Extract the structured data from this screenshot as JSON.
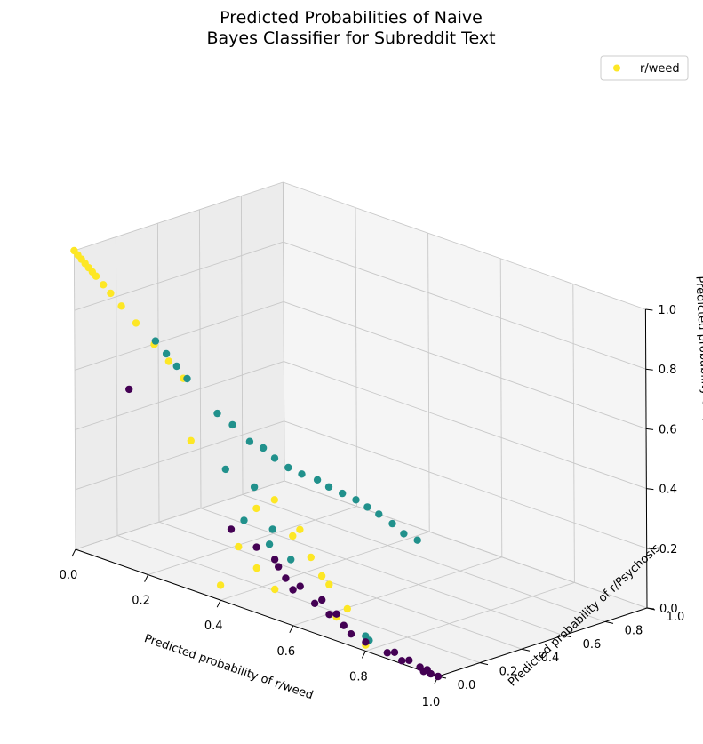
{
  "chart_data": {
    "type": "scatter",
    "projection": "3d",
    "title_lines": [
      "Predicted Probabilities of Naive",
      "Bayes Classifier for Subreddit Text"
    ],
    "xlabel": "Predicted probability of r/weed",
    "ylabel": "Predicted probability of r/Psychosis",
    "zlabel": "Predicted probability of r/schizophrenia",
    "xlim": [
      0,
      1
    ],
    "ylim": [
      0,
      1
    ],
    "zlim": [
      0,
      1
    ],
    "x_ticks": [
      "0.0",
      "0.2",
      "0.4",
      "0.6",
      "0.8",
      "1.0"
    ],
    "y_ticks": [
      "0.0",
      "0.2",
      "0.4",
      "0.6",
      "0.8",
      "1.0"
    ],
    "z_ticks": [
      "0.0",
      "0.2",
      "0.4",
      "0.6",
      "0.8",
      "1.0"
    ],
    "grid": true,
    "legend": {
      "position": "top-right",
      "entries": [
        {
          "label": "r/weed",
          "color": "#fde725"
        }
      ]
    },
    "colors": {
      "weed": "#fde725",
      "psychosis": "#21918c",
      "schizophrenia": "#440154"
    },
    "series": [
      {
        "color_key": "weed",
        "points": [
          [
            0.0,
            0.0,
            1.0
          ],
          [
            0.01,
            0.0,
            0.99
          ],
          [
            0.02,
            0.0,
            0.98
          ],
          [
            0.03,
            0.0,
            0.97
          ],
          [
            0.04,
            0.0,
            0.96
          ],
          [
            0.05,
            0.0,
            0.95
          ],
          [
            0.06,
            0.0,
            0.94
          ],
          [
            0.08,
            0.0,
            0.92
          ],
          [
            0.1,
            0.0,
            0.9
          ],
          [
            0.13,
            0.0,
            0.87
          ],
          [
            0.17,
            0.0,
            0.83
          ],
          [
            0.22,
            0.0,
            0.78
          ],
          [
            0.26,
            0.0,
            0.74
          ],
          [
            0.3,
            0.0,
            0.7
          ],
          [
            0.32,
            0.0,
            0.5
          ],
          [
            0.5,
            0.0,
            0.35
          ],
          [
            0.55,
            0.0,
            0.4
          ],
          [
            0.6,
            0.0,
            0.3
          ],
          [
            0.62,
            0.0,
            0.33
          ],
          [
            0.65,
            0.0,
            0.25
          ],
          [
            0.68,
            0.0,
            0.2
          ],
          [
            0.7,
            0.0,
            0.18
          ],
          [
            0.75,
            0.0,
            0.12
          ],
          [
            0.5,
            0.0,
            0.15
          ],
          [
            0.55,
            0.0,
            0.1
          ],
          [
            0.72,
            0.0,
            0.08
          ],
          [
            0.8,
            0.0,
            0.02
          ],
          [
            0.45,
            0.0,
            0.2
          ],
          [
            0.4,
            0.0,
            0.05
          ]
        ]
      },
      {
        "color_key": "psychosis",
        "points": [
          [
            0.05,
            0.3,
            0.65
          ],
          [
            0.08,
            0.3,
            0.62
          ],
          [
            0.12,
            0.28,
            0.6
          ],
          [
            0.16,
            0.26,
            0.58
          ],
          [
            0.22,
            0.3,
            0.48
          ],
          [
            0.25,
            0.32,
            0.45
          ],
          [
            0.28,
            0.35,
            0.4
          ],
          [
            0.3,
            0.38,
            0.38
          ],
          [
            0.32,
            0.4,
            0.35
          ],
          [
            0.34,
            0.43,
            0.32
          ],
          [
            0.36,
            0.46,
            0.3
          ],
          [
            0.38,
            0.5,
            0.28
          ],
          [
            0.4,
            0.52,
            0.26
          ],
          [
            0.42,
            0.55,
            0.24
          ],
          [
            0.44,
            0.58,
            0.22
          ],
          [
            0.46,
            0.6,
            0.2
          ],
          [
            0.48,
            0.62,
            0.18
          ],
          [
            0.5,
            0.65,
            0.15
          ],
          [
            0.52,
            0.67,
            0.12
          ],
          [
            0.54,
            0.7,
            0.1
          ],
          [
            0.3,
            0.2,
            0.35
          ],
          [
            0.35,
            0.25,
            0.3
          ],
          [
            0.35,
            0.2,
            0.2
          ],
          [
            0.4,
            0.25,
            0.18
          ],
          [
            0.42,
            0.2,
            0.15
          ],
          [
            0.45,
            0.25,
            0.1
          ],
          [
            0.8,
            0.0,
            0.05
          ],
          [
            0.81,
            0.0,
            0.04
          ]
        ]
      },
      {
        "color_key": "schizophrenia",
        "points": [
          [
            0.15,
            0.0,
            0.6
          ],
          [
            0.43,
            0.0,
            0.25
          ],
          [
            0.5,
            0.0,
            0.22
          ],
          [
            0.55,
            0.0,
            0.2
          ],
          [
            0.56,
            0.0,
            0.18
          ],
          [
            0.58,
            0.0,
            0.15
          ],
          [
            0.6,
            0.0,
            0.12
          ],
          [
            0.62,
            0.0,
            0.14
          ],
          [
            0.66,
            0.0,
            0.1
          ],
          [
            0.68,
            0.0,
            0.12
          ],
          [
            0.7,
            0.0,
            0.08
          ],
          [
            0.72,
            0.0,
            0.09
          ],
          [
            0.74,
            0.0,
            0.06
          ],
          [
            0.76,
            0.0,
            0.04
          ],
          [
            0.8,
            0.0,
            0.03
          ],
          [
            0.86,
            0.0,
            0.02
          ],
          [
            0.88,
            0.0,
            0.03
          ],
          [
            0.9,
            0.0,
            0.01
          ],
          [
            0.92,
            0.0,
            0.02
          ],
          [
            0.95,
            0.0,
            0.01
          ],
          [
            0.96,
            0.0,
            0.0
          ],
          [
            0.97,
            0.0,
            0.01
          ],
          [
            0.98,
            0.0,
            0.0
          ],
          [
            1.0,
            0.0,
            0.0
          ]
        ]
      }
    ]
  }
}
